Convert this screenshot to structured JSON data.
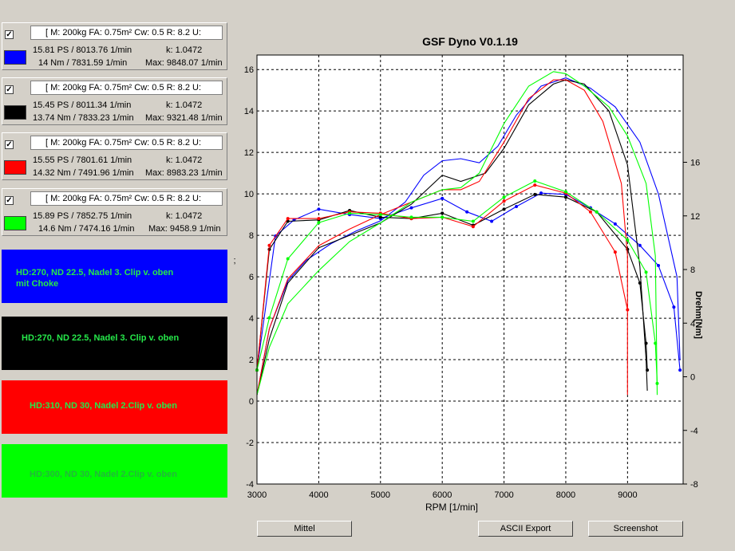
{
  "runs": [
    {
      "checked": true,
      "params": "[ M: 200kg  FA: 0.75m²  Cw: 0.5  R: 8.2  U:",
      "power": "15.81 PS / 8013.76 1/min",
      "torque": "14 Nm / 7831.59 1/min",
      "k": "k: 1.0472",
      "max": "Max: 9848.07 1/min",
      "color": "#0000ff"
    },
    {
      "checked": true,
      "params": "[ M: 200kg  FA: 0.75m²  Cw: 0.5  R: 8.2  U:",
      "power": "15.45 PS / 8011.34 1/min",
      "torque": "13.74 Nm / 7833.23 1/min",
      "k": "k: 1.0472",
      "max": "Max: 9321.48 1/min",
      "color": "#000000"
    },
    {
      "checked": true,
      "params": "[ M: 200kg  FA: 0.75m²  Cw: 0.5  R: 8.2  U:",
      "power": "15.55 PS / 7801.61 1/min",
      "torque": "14.32 Nm / 7491.96 1/min",
      "k": "k: 1.0472",
      "max": "Max: 8983.23 1/min",
      "color": "#ff0000"
    },
    {
      "checked": true,
      "params": "[ M: 200kg  FA: 0.75m²  Cw: 0.5  R: 8.2  U:",
      "power": "15.89 PS / 7852.75 1/min",
      "torque": "14.6 Nm / 7474.16 1/min",
      "k": "k: 1.0472",
      "max": "Max: 9458.9 1/min",
      "color": "#00ff00"
    }
  ],
  "notes": [
    {
      "text": "HD:270, ND 22.5, Nadel 3. Clip v. oben\nmit Choke",
      "bg": "#0000ff"
    },
    {
      "text": "HD:270, ND 22.5, Nadel 3. Clip v. oben",
      "bg": "#000000"
    },
    {
      "text": "HD:310, ND 30, Nadel 2.Clip v. oben",
      "bg": "#ff0000"
    },
    {
      "text": "HD:300, ND 30, Nadel 2.Clip v. oben",
      "bg": "#00ff00"
    }
  ],
  "buttons": {
    "mittel": "Mittel",
    "ascii_export": "ASCII Export",
    "screenshot": "Screenshot"
  },
  "chart_data": {
    "type": "line",
    "title": "GSF Dyno V0.1.19",
    "xlabel": "RPM [1/min]",
    "ylabel_left": ";",
    "ylabel_right": "Drehm[Nm]",
    "xlim": [
      3000,
      9900
    ],
    "ylim_left": [
      -4,
      16.7
    ],
    "ylim_right": [
      -8,
      24
    ],
    "x_ticks": [
      3000,
      4000,
      5000,
      6000,
      7000,
      8000,
      9000
    ],
    "y_ticks_left": [
      -4,
      -2,
      0,
      2,
      4,
      6,
      8,
      10,
      12,
      14,
      16
    ],
    "y_ticks_right": [
      -8,
      -4,
      0,
      4,
      8,
      12,
      16
    ],
    "grid": true,
    "series": [
      {
        "color": "#0000ff",
        "power": [
          [
            3000,
            0.3
          ],
          [
            3200,
            3.5
          ],
          [
            3500,
            5.8
          ],
          [
            3800,
            6.8
          ],
          [
            4200,
            7.6
          ],
          [
            4600,
            8.2
          ],
          [
            5000,
            8.7
          ],
          [
            5400,
            9.6
          ],
          [
            5700,
            10.9
          ],
          [
            6000,
            11.6
          ],
          [
            6300,
            11.7
          ],
          [
            6600,
            11.5
          ],
          [
            6900,
            12.3
          ],
          [
            7200,
            13.8
          ],
          [
            7600,
            15.2
          ],
          [
            8000,
            15.6
          ],
          [
            8400,
            15.1
          ],
          [
            8800,
            14.2
          ],
          [
            9200,
            12.5
          ],
          [
            9500,
            10
          ],
          [
            9800,
            6
          ],
          [
            9850,
            2
          ]
        ],
        "torque": [
          [
            3000,
            0.5
          ],
          [
            3300,
            10.5
          ],
          [
            3600,
            11.7
          ],
          [
            4000,
            12.5
          ],
          [
            4500,
            12.1
          ],
          [
            5000,
            11.8
          ],
          [
            5500,
            12.6
          ],
          [
            6000,
            13.3
          ],
          [
            6400,
            12.3
          ],
          [
            6800,
            11.6
          ],
          [
            7200,
            12.7
          ],
          [
            7600,
            13.7
          ],
          [
            8000,
            13.6
          ],
          [
            8400,
            12.6
          ],
          [
            8800,
            11.4
          ],
          [
            9200,
            9.8
          ],
          [
            9500,
            8.3
          ],
          [
            9750,
            5.2
          ],
          [
            9850,
            0.5
          ]
        ]
      },
      {
        "color": "#000000",
        "power": [
          [
            3000,
            0.3
          ],
          [
            3200,
            3
          ],
          [
            3500,
            5.7
          ],
          [
            4000,
            7.4
          ],
          [
            4500,
            8
          ],
          [
            5000,
            8.6
          ],
          [
            5500,
            9.5
          ],
          [
            6000,
            10.9
          ],
          [
            6300,
            10.6
          ],
          [
            6700,
            11
          ],
          [
            7000,
            12.2
          ],
          [
            7400,
            14.3
          ],
          [
            7800,
            15.3
          ],
          [
            8000,
            15.5
          ],
          [
            8300,
            15.3
          ],
          [
            8700,
            14
          ],
          [
            9000,
            11.4
          ],
          [
            9200,
            6.5
          ],
          [
            9300,
            2
          ],
          [
            9320,
            0.5
          ]
        ],
        "torque": [
          [
            3000,
            0.5
          ],
          [
            3200,
            9.5
          ],
          [
            3500,
            11.6
          ],
          [
            4000,
            11.7
          ],
          [
            4500,
            12.4
          ],
          [
            5000,
            11.9
          ],
          [
            5500,
            11.8
          ],
          [
            6000,
            12.2
          ],
          [
            6500,
            11.3
          ],
          [
            7000,
            12.5
          ],
          [
            7500,
            13.6
          ],
          [
            8000,
            13.4
          ],
          [
            8500,
            12.3
          ],
          [
            9000,
            9.5
          ],
          [
            9200,
            7
          ],
          [
            9300,
            2.5
          ],
          [
            9320,
            0.5
          ]
        ]
      },
      {
        "color": "#ff0000",
        "power": [
          [
            3000,
            0.3
          ],
          [
            3200,
            3.5
          ],
          [
            3500,
            5.9
          ],
          [
            4000,
            7.5
          ],
          [
            4500,
            8.3
          ],
          [
            5000,
            9
          ],
          [
            5500,
            9.6
          ],
          [
            6000,
            10.2
          ],
          [
            6300,
            10.2
          ],
          [
            6600,
            10.6
          ],
          [
            7000,
            12.5
          ],
          [
            7400,
            14.6
          ],
          [
            7800,
            15.5
          ],
          [
            8000,
            15.5
          ],
          [
            8300,
            15
          ],
          [
            8600,
            13.5
          ],
          [
            8900,
            10.5
          ],
          [
            9000,
            7
          ],
          [
            9000,
            0.3
          ]
        ],
        "torque": [
          [
            3000,
            0.5
          ],
          [
            3200,
            9.8
          ],
          [
            3500,
            11.8
          ],
          [
            4000,
            11.8
          ],
          [
            4500,
            12.3
          ],
          [
            5000,
            12.2
          ],
          [
            5500,
            11.8
          ],
          [
            6000,
            11.9
          ],
          [
            6500,
            11.2
          ],
          [
            7000,
            13.1
          ],
          [
            7500,
            14.3
          ],
          [
            8000,
            13.7
          ],
          [
            8400,
            12.3
          ],
          [
            8800,
            9.3
          ],
          [
            9000,
            5
          ]
        ]
      },
      {
        "color": "#00ff00",
        "power": [
          [
            3000,
            0.3
          ],
          [
            3200,
            2.6
          ],
          [
            3500,
            4.7
          ],
          [
            4000,
            6.3
          ],
          [
            4500,
            7.7
          ],
          [
            5000,
            8.6
          ],
          [
            5500,
            9.6
          ],
          [
            6000,
            10.2
          ],
          [
            6300,
            10.3
          ],
          [
            6600,
            11
          ],
          [
            7000,
            13.4
          ],
          [
            7400,
            15.2
          ],
          [
            7800,
            15.9
          ],
          [
            8000,
            15.8
          ],
          [
            8300,
            15.2
          ],
          [
            8700,
            14.2
          ],
          [
            9000,
            12.8
          ],
          [
            9300,
            10.5
          ],
          [
            9450,
            7
          ],
          [
            9480,
            0.3
          ]
        ],
        "torque": [
          [
            3000,
            0.5
          ],
          [
            3200,
            4.4
          ],
          [
            3500,
            8.8
          ],
          [
            4000,
            11.5
          ],
          [
            4500,
            12.2
          ],
          [
            5000,
            12.1
          ],
          [
            5500,
            11.9
          ],
          [
            6000,
            11.9
          ],
          [
            6500,
            11.6
          ],
          [
            7000,
            13.4
          ],
          [
            7500,
            14.6
          ],
          [
            8000,
            13.8
          ],
          [
            8500,
            12.3
          ],
          [
            9000,
            10.2
          ],
          [
            9300,
            7.8
          ],
          [
            9450,
            2.5
          ],
          [
            9480,
            -0.5
          ]
        ]
      }
    ]
  }
}
